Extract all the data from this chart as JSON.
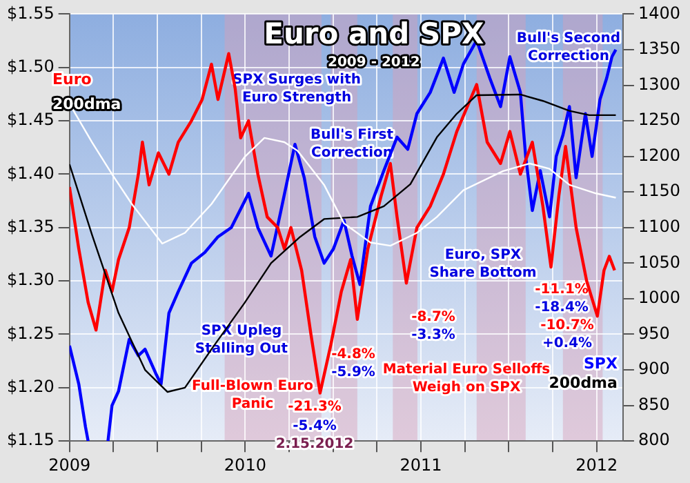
{
  "chart_data": {
    "type": "line",
    "title": "Euro and SPX",
    "subtitle": "2009 - 2012",
    "xlim": [
      2009,
      2012.15
    ],
    "xticks": [
      2009,
      {
        "value": 2009.25,
        "label": null
      },
      {
        "value": 2009.5,
        "label": null
      },
      {
        "value": 2009.75,
        "label": null
      },
      2010,
      {
        "value": 2010.25,
        "label": null
      },
      {
        "value": 2010.5,
        "label": null
      },
      {
        "value": 2010.75,
        "label": null
      },
      2011,
      {
        "value": 2011.25,
        "label": null
      },
      {
        "value": 2011.5,
        "label": null
      },
      {
        "value": 2011.75,
        "label": null
      },
      2012
    ],
    "ylim": [
      1.15,
      1.55
    ],
    "yticks": [
      {
        "value": 1.15,
        "label": "$1.15"
      },
      {
        "value": 1.2,
        "label": "$1.20"
      },
      {
        "value": 1.25,
        "label": "$1.25"
      },
      {
        "value": 1.3,
        "label": "$1.30"
      },
      {
        "value": 1.35,
        "label": "$1.35"
      },
      {
        "value": 1.4,
        "label": "$1.40"
      },
      {
        "value": 1.45,
        "label": "$1.45"
      },
      {
        "value": 1.5,
        "label": "$1.50"
      },
      {
        "value": 1.55,
        "label": "$1.55"
      }
    ],
    "y2lim": [
      800,
      1400
    ],
    "y2ticks": [
      800,
      850,
      900,
      950,
      1000,
      1050,
      1100,
      1150,
      1200,
      1250,
      1300,
      1350,
      1400
    ],
    "grid": true,
    "legend": false,
    "marker": "none",
    "line_style": "solid",
    "bands": [
      {
        "axis": "x",
        "from": 2009.883,
        "to": 2010.434,
        "color": "#d8a0b8"
      },
      {
        "axis": "x",
        "from": 2010.487,
        "to": 2010.638,
        "color": "#d8a0b8"
      },
      {
        "axis": "x",
        "from": 2010.84,
        "to": 2010.98,
        "color": "#d8a0b8"
      },
      {
        "axis": "x",
        "from": 2011.317,
        "to": 2011.596,
        "color": "#d8a0b8"
      },
      {
        "axis": "x",
        "from": 2011.808,
        "to": 2012.034,
        "color": "#d8a0b8"
      }
    ],
    "series": [
      {
        "name": "200dma",
        "color": "#ffffff",
        "x": [
          2009,
          2009.128,
          2009.242,
          2009.355,
          2009.528,
          2009.657,
          2009.808,
          2009.996,
          2010.109,
          2010.223,
          2010.298,
          2010.449,
          2010.562,
          2010.713,
          2010.826,
          2010.977,
          2011.091,
          2011.242,
          2011.468,
          2011.619,
          2011.732,
          2011.845,
          2011.996,
          2012.109
        ],
        "values": [
          1.466,
          1.43,
          1.4,
          1.372,
          1.335,
          1.345,
          1.372,
          1.416,
          1.434,
          1.43,
          1.422,
          1.39,
          1.354,
          1.336,
          1.333,
          1.345,
          1.36,
          1.385,
          1.403,
          1.41,
          1.405,
          1.39,
          1.382,
          1.378
        ]
      },
      {
        "name": "200dma",
        "color": "#000000",
        "axis": "y2",
        "x": [
          2009,
          2009.128,
          2009.279,
          2009.43,
          2009.558,
          2009.657,
          2009.808,
          2009.996,
          2010.147,
          2010.313,
          2010.449,
          2010.638,
          2010.789,
          2010.94,
          2011.091,
          2011.204,
          2011.317,
          2011.566,
          2011.694,
          2011.845,
          2011.958,
          2012.109
        ],
        "values": [
          1189,
          1090,
          980,
          900,
          869,
          875,
          929,
          994,
          1050,
          1087,
          1112,
          1115,
          1130,
          1161,
          1227,
          1260,
          1286,
          1287,
          1278,
          1264,
          1258,
          1258
        ]
      },
      {
        "name": "Euro",
        "color": "#ff0000",
        "x": [
          2009,
          2009.053,
          2009.106,
          2009.151,
          2009.204,
          2009.242,
          2009.279,
          2009.34,
          2009.392,
          2009.415,
          2009.453,
          2009.506,
          2009.566,
          2009.619,
          2009.694,
          2009.755,
          2009.808,
          2009.845,
          2009.906,
          2009.943,
          2009.974,
          2010.019,
          2010.072,
          2010.125,
          2010.185,
          2010.223,
          2010.26,
          2010.321,
          2010.374,
          2010.426,
          2010.487,
          2010.547,
          2010.6,
          2010.638,
          2010.698,
          2010.774,
          2010.826,
          2010.864,
          2010.917,
          2010.977,
          2011.053,
          2011.128,
          2011.204,
          2011.317,
          2011.377,
          2011.453,
          2011.506,
          2011.566,
          2011.634,
          2011.694,
          2011.74,
          2011.785,
          2011.823,
          2011.883,
          2011.943,
          2012.004,
          2012.042,
          2012.072,
          2012.102
        ],
        "values": [
          1.388,
          1.33,
          1.28,
          1.254,
          1.31,
          1.29,
          1.32,
          1.35,
          1.4,
          1.43,
          1.39,
          1.42,
          1.4,
          1.43,
          1.45,
          1.47,
          1.503,
          1.47,
          1.513,
          1.48,
          1.434,
          1.45,
          1.4,
          1.36,
          1.35,
          1.33,
          1.35,
          1.31,
          1.25,
          1.195,
          1.24,
          1.29,
          1.32,
          1.264,
          1.33,
          1.38,
          1.41,
          1.36,
          1.298,
          1.35,
          1.37,
          1.4,
          1.44,
          1.484,
          1.43,
          1.41,
          1.44,
          1.4,
          1.43,
          1.37,
          1.313,
          1.38,
          1.426,
          1.35,
          1.3,
          1.267,
          1.31,
          1.323,
          1.31
        ]
      },
      {
        "name": "SPX",
        "color": "#0000ff",
        "axis": "y2",
        "x": [
          2009,
          2009.053,
          2009.091,
          2009.106,
          2009.16,
          2009.219,
          2009.242,
          2009.279,
          2009.34,
          2009.392,
          2009.43,
          2009.491,
          2009.521,
          2009.566,
          2009.619,
          2009.694,
          2009.77,
          2009.845,
          2009.921,
          2010.019,
          2010.072,
          2010.147,
          2010.2,
          2010.283,
          2010.336,
          2010.396,
          2010.449,
          2010.502,
          2010.562,
          2010.608,
          2010.653,
          2010.713,
          2010.789,
          2010.864,
          2010.925,
          2010.977,
          2011.053,
          2011.128,
          2011.189,
          2011.242,
          2011.317,
          2011.392,
          2011.453,
          2011.506,
          2011.566,
          2011.596,
          2011.634,
          2011.679,
          2011.732,
          2011.77,
          2011.808,
          2011.845,
          2011.883,
          2011.936,
          2011.974,
          2012.019,
          2012.057,
          2012.087,
          2012.109
        ],
        "values": [
          934,
          880,
          820,
          800,
          null,
          800,
          850,
          870,
          943,
          920,
          929,
          895,
          880,
          980,
          1010,
          1050,
          1065,
          1087,
          1100,
          1148,
          1100,
          1060,
          1120,
          1217,
          1170,
          1087,
          1050,
          1070,
          1110,
          1060,
          1020,
          1130,
          1180,
          1227,
          1210,
          1260,
          1290,
          1338,
          1290,
          1330,
          1363,
          1310,
          1270,
          1340,
          1290,
          1200,
          1124,
          1180,
          1115,
          1200,
          1230,
          1270,
          1170,
          1260,
          1200,
          1280,
          1310,
          1340,
          1350
        ]
      }
    ],
    "annotations": [
      "SPX Surges with Euro Strength",
      "Bull's First Correction",
      "Bull's Second Correction",
      "SPX Upleg Stalling Out",
      "Full-Blown Euro Panic",
      "-21.3%",
      "-5.4%",
      "2.15.2012",
      "-4.8%",
      "-5.9%",
      "-8.7%",
      "-3.3%",
      "Material Euro Selloffs Weigh on SPX",
      "Euro, SPX Share Bottom",
      "-11.1%",
      "-18.4%",
      "-10.7%",
      "+0.4%"
    ]
  }
}
